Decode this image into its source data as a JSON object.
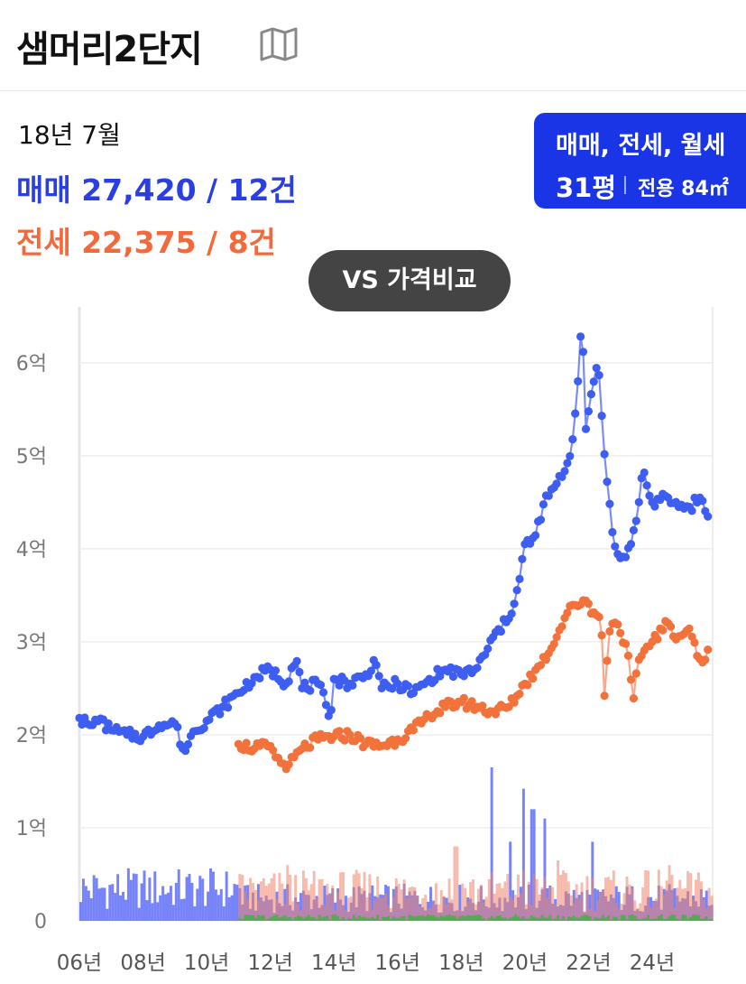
{
  "header": {
    "title": "샘머리2단지",
    "map_icon": "map-icon"
  },
  "info": {
    "date": "18년 7월",
    "sale_text": "매매 27,420 / 12건",
    "jeonse_text": "전세 22,375 / 8건"
  },
  "type_badge": {
    "types": "매매, 전세, 월세",
    "pyeong": "31평",
    "area": "전용 84㎡"
  },
  "compare_button": "VS 가격비교",
  "colors": {
    "sale": "#3d5ef0",
    "sale_line": "#7b8cf5",
    "jeonse": "#f2723c",
    "jeonse_line": "#f5a989",
    "volume_sale": "#4a5af5",
    "volume_jeonse": "#f0836a",
    "volume_rent": "#3bb53b",
    "badge": "#1a35e6"
  },
  "chart_data": {
    "type": "line",
    "title": "",
    "y_unit": "억원",
    "ylim": [
      0,
      6.6
    ],
    "y_ticks": [
      {
        "v": 0,
        "label": "0"
      },
      {
        "v": 1,
        "label": "1억"
      },
      {
        "v": 2,
        "label": "2억"
      },
      {
        "v": 3,
        "label": "3억"
      },
      {
        "v": 4,
        "label": "4억"
      },
      {
        "v": 5,
        "label": "5억"
      },
      {
        "v": 6,
        "label": "6억"
      }
    ],
    "xlim": [
      2006,
      2025.9
    ],
    "x_ticks": [
      {
        "v": 2006,
        "label": "06년"
      },
      {
        "v": 2008,
        "label": "08년"
      },
      {
        "v": 2010,
        "label": "10년"
      },
      {
        "v": 2012,
        "label": "12년"
      },
      {
        "v": 2014,
        "label": "14년"
      },
      {
        "v": 2016,
        "label": "16년"
      },
      {
        "v": 2018,
        "label": "18년"
      },
      {
        "v": 2020,
        "label": "20년"
      },
      {
        "v": 2022,
        "label": "22년"
      },
      {
        "v": 2024,
        "label": "24년"
      }
    ],
    "grid": true,
    "series": [
      {
        "name": "매매",
        "key": "sale",
        "points": [
          [
            2006.0,
            2.18
          ],
          [
            2006.3,
            2.1
          ],
          [
            2006.6,
            2.15
          ],
          [
            2007.0,
            2.05
          ],
          [
            2007.5,
            2.0
          ],
          [
            2008.0,
            1.98
          ],
          [
            2008.5,
            2.1
          ],
          [
            2009.0,
            2.12
          ],
          [
            2009.3,
            1.8
          ],
          [
            2009.6,
            2.05
          ],
          [
            2010.0,
            2.15
          ],
          [
            2010.5,
            2.3
          ],
          [
            2011.0,
            2.45
          ],
          [
            2011.5,
            2.62
          ],
          [
            2012.0,
            2.7
          ],
          [
            2012.5,
            2.55
          ],
          [
            2012.8,
            2.85
          ],
          [
            2013.0,
            2.5
          ],
          [
            2013.5,
            2.55
          ],
          [
            2013.9,
            2.2
          ],
          [
            2014.0,
            2.6
          ],
          [
            2014.5,
            2.55
          ],
          [
            2015.0,
            2.65
          ],
          [
            2015.3,
            2.8
          ],
          [
            2015.5,
            2.5
          ],
          [
            2016.0,
            2.55
          ],
          [
            2016.5,
            2.45
          ],
          [
            2017.0,
            2.6
          ],
          [
            2017.5,
            2.7
          ],
          [
            2018.0,
            2.65
          ],
          [
            2018.5,
            2.72
          ],
          [
            2018.8,
            2.9
          ],
          [
            2019.0,
            3.05
          ],
          [
            2019.5,
            3.25
          ],
          [
            2019.8,
            3.6
          ],
          [
            2020.0,
            4.05
          ],
          [
            2020.3,
            4.1
          ],
          [
            2020.6,
            4.5
          ],
          [
            2021.0,
            4.7
          ],
          [
            2021.4,
            4.95
          ],
          [
            2021.6,
            5.5
          ],
          [
            2021.8,
            6.55
          ],
          [
            2021.9,
            5.25
          ],
          [
            2022.1,
            5.7
          ],
          [
            2022.3,
            6.05
          ],
          [
            2022.4,
            5.5
          ],
          [
            2022.6,
            4.65
          ],
          [
            2022.8,
            4.05
          ],
          [
            2023.0,
            3.9
          ],
          [
            2023.3,
            4.0
          ],
          [
            2023.5,
            4.3
          ],
          [
            2023.7,
            4.85
          ],
          [
            2024.0,
            4.5
          ],
          [
            2024.5,
            4.55
          ],
          [
            2024.8,
            4.45
          ],
          [
            2025.2,
            4.45
          ],
          [
            2025.5,
            4.55
          ],
          [
            2025.8,
            4.3
          ]
        ]
      },
      {
        "name": "전세",
        "key": "jeonse",
        "points": [
          [
            2011.0,
            1.9
          ],
          [
            2011.5,
            1.85
          ],
          [
            2012.0,
            1.88
          ],
          [
            2012.3,
            1.7
          ],
          [
            2012.6,
            1.68
          ],
          [
            2013.0,
            1.85
          ],
          [
            2013.5,
            1.95
          ],
          [
            2014.0,
            1.98
          ],
          [
            2014.5,
            2.0
          ],
          [
            2015.0,
            1.9
          ],
          [
            2015.5,
            1.88
          ],
          [
            2016.0,
            1.95
          ],
          [
            2016.5,
            2.05
          ],
          [
            2017.0,
            2.2
          ],
          [
            2017.5,
            2.3
          ],
          [
            2018.0,
            2.35
          ],
          [
            2018.5,
            2.3
          ],
          [
            2019.0,
            2.25
          ],
          [
            2019.5,
            2.3
          ],
          [
            2020.0,
            2.55
          ],
          [
            2020.5,
            2.75
          ],
          [
            2021.0,
            3.05
          ],
          [
            2021.3,
            3.3
          ],
          [
            2021.6,
            3.4
          ],
          [
            2021.9,
            3.45
          ],
          [
            2022.2,
            3.3
          ],
          [
            2022.4,
            3.2
          ],
          [
            2022.5,
            2.42
          ],
          [
            2022.7,
            3.25
          ],
          [
            2022.9,
            3.2
          ],
          [
            2023.2,
            2.95
          ],
          [
            2023.4,
            2.35
          ],
          [
            2023.6,
            2.85
          ],
          [
            2024.0,
            3.0
          ],
          [
            2024.5,
            3.2
          ],
          [
            2024.8,
            3.05
          ],
          [
            2025.2,
            3.15
          ],
          [
            2025.4,
            2.85
          ],
          [
            2025.7,
            2.8
          ],
          [
            2025.8,
            2.95
          ]
        ]
      }
    ],
    "volume": {
      "sale_spikes": [
        [
          2018.9,
          1.65
        ],
        [
          2019.9,
          1.42
        ],
        [
          2020.2,
          1.2
        ],
        [
          2020.6,
          1.1
        ],
        [
          2019.5,
          0.85
        ],
        [
          2022.1,
          0.85
        ]
      ],
      "jeonse_spikes": [
        [
          2017.8,
          0.8
        ],
        [
          2019.9,
          0.55
        ],
        [
          2021.0,
          0.65
        ],
        [
          2024.5,
          0.6
        ],
        [
          2012.5,
          0.6
        ]
      ]
    }
  }
}
